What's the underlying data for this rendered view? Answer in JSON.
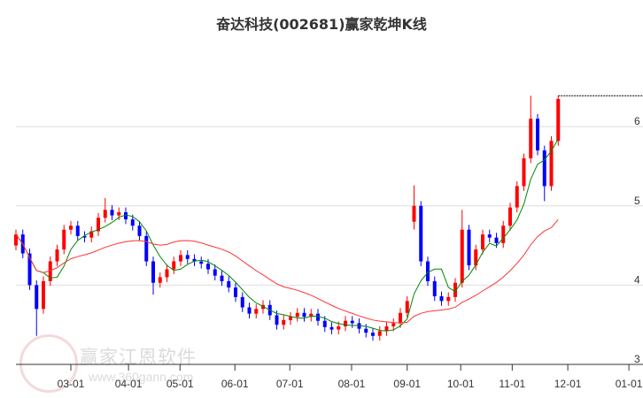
{
  "chart_data": {
    "type": "candlestick",
    "title": "奋达科技(002681)赢家乾坤K线",
    "ylim": [
      3,
      6.75
    ],
    "yticks": [
      {
        "v": 3,
        "label": "3"
      },
      {
        "v": 4,
        "label": "4"
      },
      {
        "v": 5,
        "label": "5"
      },
      {
        "v": 6,
        "label": "6"
      }
    ],
    "xticks": [
      {
        "i": 8,
        "label": "03-01"
      },
      {
        "i": 16.4,
        "label": "04-01"
      },
      {
        "i": 23.9,
        "label": "05-01"
      },
      {
        "i": 31.9,
        "label": "06-01"
      },
      {
        "i": 39.9,
        "label": "07-01"
      },
      {
        "i": 48.9,
        "label": "08-01"
      },
      {
        "i": 57,
        "label": "09-01"
      },
      {
        "i": 64.8,
        "label": "10-01"
      },
      {
        "i": 72.3,
        "label": "11-01"
      },
      {
        "i": 80.4,
        "label": "12-01"
      },
      {
        "i": 89.3,
        "label": "01-01"
      }
    ],
    "candles": [
      [
        4.5,
        4.7,
        4.44,
        4.64
      ],
      [
        4.64,
        4.7,
        4.34,
        4.4
      ],
      [
        4.4,
        4.46,
        3.94,
        4.0
      ],
      [
        4.0,
        4.06,
        3.36,
        3.7
      ],
      [
        3.7,
        4.11,
        3.64,
        4.05
      ],
      [
        4.05,
        4.36,
        3.99,
        4.3
      ],
      [
        4.3,
        4.51,
        4.24,
        4.45
      ],
      [
        4.45,
        4.76,
        4.39,
        4.7
      ],
      [
        4.7,
        4.81,
        4.64,
        4.75
      ],
      [
        4.75,
        4.81,
        4.56,
        4.62
      ],
      [
        4.62,
        4.68,
        4.54,
        4.6
      ],
      [
        4.6,
        4.74,
        4.54,
        4.68
      ],
      [
        4.68,
        4.91,
        4.62,
        4.85
      ],
      [
        4.85,
        5.1,
        4.79,
        4.95
      ],
      [
        4.95,
        5.01,
        4.82,
        4.88
      ],
      [
        4.88,
        4.98,
        4.82,
        4.92
      ],
      [
        4.92,
        4.98,
        4.77,
        4.83
      ],
      [
        4.83,
        4.89,
        4.69,
        4.75
      ],
      [
        4.75,
        4.81,
        4.56,
        4.62
      ],
      [
        4.62,
        4.68,
        4.24,
        4.3
      ],
      [
        4.3,
        4.36,
        3.88,
        4.03
      ],
      [
        4.03,
        4.16,
        3.97,
        4.1
      ],
      [
        4.1,
        4.26,
        4.04,
        4.2
      ],
      [
        4.2,
        4.36,
        4.14,
        4.3
      ],
      [
        4.3,
        4.44,
        4.24,
        4.38
      ],
      [
        4.38,
        4.44,
        4.27,
        4.33
      ],
      [
        4.33,
        4.39,
        4.24,
        4.3
      ],
      [
        4.3,
        4.36,
        4.21,
        4.27
      ],
      [
        4.27,
        4.33,
        4.14,
        4.2
      ],
      [
        4.2,
        4.26,
        4.06,
        4.12
      ],
      [
        4.12,
        4.18,
        3.99,
        4.05
      ],
      [
        4.05,
        4.11,
        3.91,
        3.97
      ],
      [
        3.97,
        4.03,
        3.79,
        3.85
      ],
      [
        3.85,
        3.91,
        3.66,
        3.72
      ],
      [
        3.72,
        3.78,
        3.58,
        3.64
      ],
      [
        3.64,
        3.76,
        3.58,
        3.7
      ],
      [
        3.7,
        3.81,
        3.64,
        3.75
      ],
      [
        3.75,
        3.81,
        3.56,
        3.62
      ],
      [
        3.62,
        3.68,
        3.44,
        3.5
      ],
      [
        3.5,
        3.62,
        3.44,
        3.56
      ],
      [
        3.56,
        3.66,
        3.5,
        3.6
      ],
      [
        3.6,
        3.71,
        3.54,
        3.65
      ],
      [
        3.65,
        3.71,
        3.54,
        3.6
      ],
      [
        3.6,
        3.7,
        3.54,
        3.64
      ],
      [
        3.64,
        3.7,
        3.49,
        3.55
      ],
      [
        3.55,
        3.61,
        3.41,
        3.47
      ],
      [
        3.47,
        3.53,
        3.38,
        3.44
      ],
      [
        3.44,
        3.54,
        3.38,
        3.48
      ],
      [
        3.48,
        3.61,
        3.42,
        3.55
      ],
      [
        3.55,
        3.61,
        3.46,
        3.52
      ],
      [
        3.52,
        3.58,
        3.39,
        3.45
      ],
      [
        3.45,
        3.51,
        3.34,
        3.4
      ],
      [
        3.4,
        3.46,
        3.3,
        3.36
      ],
      [
        3.36,
        3.48,
        3.3,
        3.42
      ],
      [
        3.42,
        3.54,
        3.36,
        3.48
      ],
      [
        3.48,
        3.58,
        3.42,
        3.52
      ],
      [
        3.52,
        3.71,
        3.46,
        3.65
      ],
      [
        3.65,
        3.86,
        3.59,
        3.8
      ],
      [
        4.8,
        5.26,
        4.7,
        5.0
      ],
      [
        5.0,
        5.06,
        4.24,
        4.3
      ],
      [
        4.3,
        4.36,
        3.99,
        4.05
      ],
      [
        4.05,
        4.11,
        3.8,
        3.86
      ],
      [
        3.86,
        3.92,
        3.74,
        3.8
      ],
      [
        3.8,
        3.91,
        3.74,
        3.85
      ],
      [
        3.85,
        4.09,
        3.79,
        4.03
      ],
      [
        4.03,
        4.95,
        3.97,
        4.7
      ],
      [
        4.7,
        4.76,
        4.19,
        4.25
      ],
      [
        4.25,
        4.51,
        4.19,
        4.45
      ],
      [
        4.45,
        4.7,
        4.39,
        4.64
      ],
      [
        4.64,
        4.7,
        4.54,
        4.6
      ],
      [
        4.6,
        4.66,
        4.47,
        4.53
      ],
      [
        4.53,
        4.81,
        4.47,
        4.75
      ],
      [
        4.75,
        5.04,
        4.69,
        4.98
      ],
      [
        4.98,
        5.31,
        4.92,
        5.25
      ],
      [
        5.25,
        5.66,
        5.19,
        5.6
      ],
      [
        5.6,
        6.39,
        5.54,
        6.1
      ],
      [
        6.1,
        6.16,
        5.64,
        5.7
      ],
      [
        5.7,
        5.76,
        5.06,
        5.25
      ],
      [
        5.25,
        5.88,
        5.19,
        5.82
      ],
      [
        5.82,
        6.39,
        5.76,
        6.35
      ]
    ],
    "ma_short": 5,
    "ma_long": 20,
    "colors": {
      "up": "#ff0000",
      "down": "#0000ff",
      "ma_short": "#008800",
      "ma_long": "#ff3333",
      "grid": "#dddddd"
    }
  },
  "watermark": {
    "name": "赢家江恩软件",
    "url": "www.360gann.com",
    "seal": "江赢恩家"
  }
}
